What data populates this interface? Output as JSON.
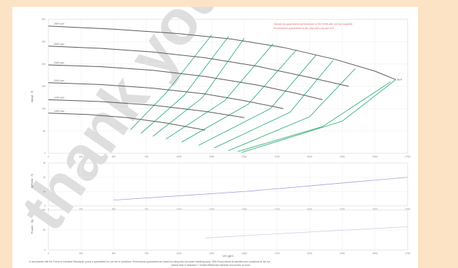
{
  "note": {
    "line1": "Typical non-guaranteed performance to ISO 9906 with 1st fluid supplied",
    "line2": "Performance guaranteed at the duty point only per ISO"
  },
  "footnote": {
    "line1": "In accordance with the Forms of Industrial Standards, pump is guaranteed for one set of conditions. Performance guaranteed are based on rating test and water handling pump. With Pump values at specified and conditions as set out",
    "line2": "please keep in standard T. Guided efficiencies standard and proven at curve."
  },
  "watermark": "thank you!",
  "colors": {
    "background": "#fde3c6",
    "head_curve": "#555555",
    "green_curve": "#2fae74",
    "npsh_line": "#8f8fd9"
  },
  "chart_data": [
    {
      "type": "line",
      "name": "head",
      "ylabel": "Head - ft",
      "xlim": [
        0,
        2750
      ],
      "ylim": [
        0,
        300
      ],
      "x_ticks": [
        "0",
        "250",
        "500",
        "750",
        "1000",
        "1250",
        "1500",
        "1750",
        "2000",
        "2250",
        "2500",
        "2750"
      ],
      "y_ticks": [
        "0",
        "50",
        "100",
        "150",
        "200",
        "250",
        "300"
      ],
      "speed_curves": [
        {
          "label": "2900 rpm",
          "points": [
            [
              0,
              285
            ],
            [
              500,
              278
            ],
            [
              1000,
              268
            ],
            [
              1400,
              256
            ],
            [
              1800,
              237
            ],
            [
              2200,
              210
            ],
            [
              2500,
              184
            ],
            [
              2660,
              165
            ]
          ]
        },
        {
          "label": "2600 rpm",
          "points": [
            [
              0,
              240
            ],
            [
              400,
              235
            ],
            [
              800,
              227
            ],
            [
              1200,
              214
            ],
            [
              1600,
              195
            ],
            [
              2000,
              170
            ],
            [
              2300,
              150
            ]
          ]
        },
        {
          "label": "2300 rpm",
          "points": [
            [
              0,
              198
            ],
            [
              400,
              194
            ],
            [
              800,
              186
            ],
            [
              1200,
              172
            ],
            [
              1600,
              153
            ],
            [
              1900,
              134
            ],
            [
              2100,
              120
            ]
          ]
        },
        {
          "label": "2000 rpm",
          "points": [
            [
              0,
              158
            ],
            [
              400,
              154
            ],
            [
              800,
              146
            ],
            [
              1200,
              133
            ],
            [
              1500,
              118
            ],
            [
              1800,
              100
            ]
          ]
        },
        {
          "label": "1700 rpm",
          "points": [
            [
              0,
              120
            ],
            [
              400,
              116
            ],
            [
              800,
              108
            ],
            [
              1200,
              94
            ],
            [
              1500,
              80
            ]
          ]
        },
        {
          "label": "1400 rpm",
          "points": [
            [
              0,
              90
            ],
            [
              300,
              87
            ],
            [
              600,
              80
            ],
            [
              900,
              68
            ],
            [
              1200,
              52
            ]
          ]
        }
      ],
      "efficiency_curves": [
        {
          "points": [
            [
              630,
              53
            ],
            [
              900,
              135
            ],
            [
              1250,
              265
            ]
          ]
        },
        {
          "points": [
            [
              710,
              45
            ],
            [
              1040,
              130
            ],
            [
              1380,
              262
            ]
          ]
        },
        {
          "points": [
            [
              800,
              38
            ],
            [
              1180,
              125
            ],
            [
              1500,
              258
            ]
          ]
        },
        {
          "points": [
            [
              900,
              32
            ],
            [
              1350,
              118
            ],
            [
              1720,
              245
            ]
          ]
        },
        {
          "points": [
            [
              1020,
              25
            ],
            [
              1530,
              110
            ],
            [
              1900,
              232
            ]
          ]
        },
        {
          "points": [
            [
              1150,
              18
            ],
            [
              1700,
              100
            ],
            [
              2050,
              220
            ]
          ]
        },
        {
          "points": [
            [
              1270,
              12
            ],
            [
              1850,
              92
            ],
            [
              2180,
              208
            ]
          ]
        },
        {
          "points": [
            [
              1380,
              6
            ],
            [
              2000,
              82
            ],
            [
              2350,
              190
            ]
          ]
        },
        {
          "points": [
            [
              1480,
              2
            ],
            [
              2250,
              72
            ],
            [
              2660,
              165
            ]
          ]
        },
        {
          "points": [
            [
              1450,
              4
            ],
            [
              2100,
              60
            ],
            [
              2620,
              160
            ]
          ]
        }
      ],
      "end_marker_label": "BEP"
    },
    {
      "type": "line",
      "name": "npsh",
      "ylabel": "NPSHr - ft",
      "xlim": [
        0,
        2750
      ],
      "ylim": [
        0,
        30
      ],
      "y_ticks": [
        "0",
        "10",
        "20",
        "30"
      ],
      "x_ticks": [
        "0",
        "250",
        "500",
        "750",
        "1000",
        "1250",
        "1500",
        "1750",
        "2000",
        "2250",
        "2500",
        "2750"
      ],
      "series": [
        {
          "points": [
            [
              500,
              4
            ],
            [
              1000,
              7
            ],
            [
              1500,
              10
            ],
            [
              2000,
              14
            ],
            [
              2500,
              18
            ],
            [
              2750,
              20
            ]
          ]
        }
      ]
    },
    {
      "type": "line",
      "name": "power",
      "ylabel": "Power - hp",
      "xlabel": "US gpm",
      "xlim": [
        0,
        2750
      ],
      "ylim": [
        0,
        100
      ],
      "y_ticks": [
        "0",
        "50",
        "100"
      ],
      "x_ticks": [
        "0",
        "250",
        "500",
        "750",
        "1000",
        "1250",
        "1500",
        "1750",
        "2000",
        "2250",
        "2500",
        "2750"
      ],
      "series": [
        {
          "points": [
            [
              1200,
              30
            ],
            [
              1600,
              38
            ],
            [
              2000,
              45
            ],
            [
              2400,
              52
            ],
            [
              2750,
              58
            ]
          ]
        }
      ]
    }
  ]
}
